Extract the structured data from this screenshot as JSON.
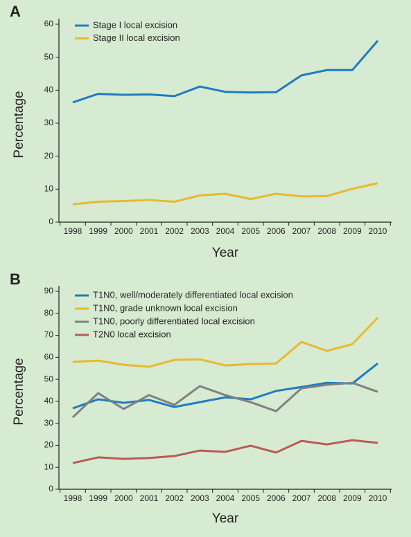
{
  "chart_data": [
    {
      "type": "line",
      "panel": "A",
      "x_label": "Year",
      "y_label": "Percentage",
      "categories": [
        "1998",
        "1999",
        "2000",
        "2001",
        "2002",
        "2003",
        "2004",
        "2005",
        "2006",
        "2007",
        "2008",
        "2009",
        "2010"
      ],
      "ylim": [
        0,
        60
      ],
      "yticks": [
        0,
        10,
        20,
        30,
        40,
        50,
        60
      ],
      "grid": false,
      "series": [
        {
          "name": "Stage I local excision",
          "color": "#1f7bbf",
          "values": [
            36.3,
            38.9,
            38.6,
            38.7,
            38.2,
            41.1,
            39.5,
            39.3,
            39.4,
            44.5,
            46.1,
            46.1,
            55.0
          ]
        },
        {
          "name": "Stage II local excision",
          "color": "#e8b92f",
          "values": [
            5.4,
            6.2,
            6.4,
            6.7,
            6.2,
            8.1,
            8.6,
            7.0,
            8.6,
            7.8,
            7.9,
            10.1,
            11.8
          ]
        }
      ]
    },
    {
      "type": "line",
      "panel": "B",
      "x_label": "Year",
      "y_label": "Percentage",
      "categories": [
        "1998",
        "1999",
        "2000",
        "2001",
        "2002",
        "2003",
        "2004",
        "2005",
        "2006",
        "2007",
        "2008",
        "2009",
        "2010"
      ],
      "ylim": [
        0,
        90
      ],
      "yticks": [
        0,
        10,
        20,
        30,
        40,
        50,
        60,
        70,
        80,
        90
      ],
      "grid": false,
      "series": [
        {
          "name": "T1N0, well/moderately differentiated local excision",
          "color": "#1f7bbf",
          "values": [
            36.8,
            40.9,
            39.3,
            40.6,
            37.4,
            39.6,
            41.8,
            40.9,
            44.7,
            46.5,
            48.4,
            48.1,
            57.2
          ]
        },
        {
          "name": "T1N0, grade unknown local excision",
          "color": "#e8b92f",
          "values": [
            57.9,
            58.5,
            56.6,
            55.7,
            58.8,
            59.1,
            56.3,
            56.9,
            57.2,
            67.0,
            62.9,
            66.0,
            78.0
          ]
        },
        {
          "name": "T1N0, poorly differentiated local excision",
          "color": "#808080",
          "values": [
            32.7,
            43.7,
            36.5,
            42.8,
            38.4,
            46.9,
            42.8,
            39.6,
            35.5,
            45.9,
            47.5,
            48.4,
            44.3
          ]
        },
        {
          "name": "T2N0 local excision",
          "color": "#b85a55",
          "values": [
            11.9,
            14.5,
            13.8,
            14.2,
            15.1,
            17.6,
            17.0,
            19.8,
            16.7,
            22.0,
            20.4,
            22.3,
            21.1
          ]
        }
      ]
    }
  ]
}
